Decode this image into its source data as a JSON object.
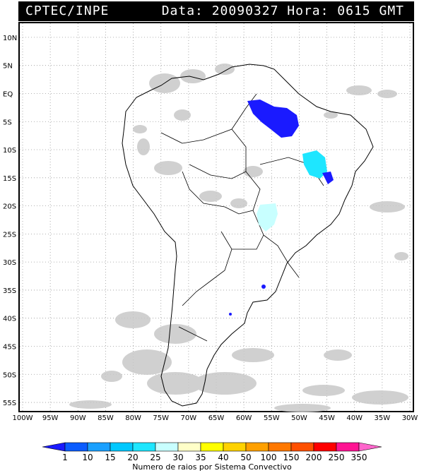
{
  "header": {
    "source": "CPTEC/INPE",
    "date_label": "Data:",
    "date": "20090327",
    "time_label": "Hora:",
    "time": "0615 GMT"
  },
  "map": {
    "lat_labels": [
      "10N",
      "5N",
      "EQ",
      "5S",
      "10S",
      "15S",
      "20S",
      "25S",
      "30S",
      "35S",
      "40S",
      "45S",
      "50S",
      "55S"
    ],
    "lon_labels": [
      "100W",
      "95W",
      "90W",
      "85W",
      "80W",
      "75W",
      "70W",
      "65W",
      "60W",
      "55W",
      "50W",
      "45W",
      "40W",
      "35W",
      "30W"
    ],
    "lon_range": [
      -100,
      -30
    ],
    "lat_range": [
      -56,
      12
    ],
    "grid": "dotted",
    "background_cloud_color": "#c8c8c8"
  },
  "legend": {
    "title": "Numero de raios por Sistema Convectivo",
    "ticks": [
      "1",
      "10",
      "15",
      "20",
      "25",
      "30",
      "35",
      "40",
      "50",
      "100",
      "150",
      "200",
      "250",
      "350"
    ],
    "colors": [
      "#1a1aff",
      "#0a5cff",
      "#1aa0ff",
      "#00c8ff",
      "#1ee6ff",
      "#c8ffff",
      "#ffffc8",
      "#ffff00",
      "#ffd200",
      "#ffa000",
      "#ff7800",
      "#ff5000",
      "#ff0000",
      "#ff1493",
      "#ff66cc"
    ]
  },
  "systems": [
    {
      "color": "#1a1aff",
      "lightning": "1-10"
    },
    {
      "color": "#1ee6ff",
      "lightning": "25-30"
    },
    {
      "color": "#c8ffff",
      "lightning": "30-35"
    }
  ]
}
